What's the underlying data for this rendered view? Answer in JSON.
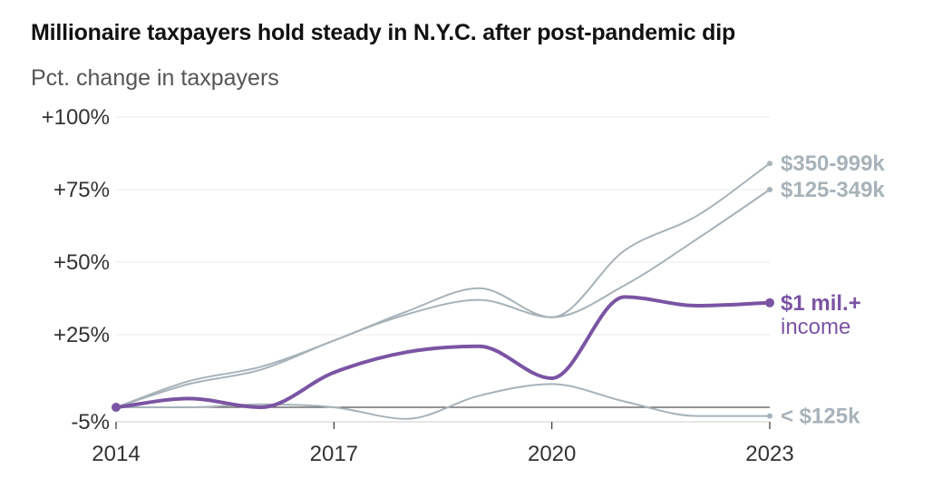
{
  "title": "Millionaire taxpayers hold steady in N.Y.C. after post-pandemic dip",
  "subtitle": "Pct. change in taxpayers",
  "chart_data": {
    "type": "line",
    "title": "Millionaire taxpayers hold steady in N.Y.C. after post-pandemic dip",
    "ylabel": "Pct. change in taxpayers",
    "xlabel": "",
    "x": [
      2014,
      2015,
      2016,
      2017,
      2018,
      2019,
      2020,
      2021,
      2022,
      2023
    ],
    "xticks": [
      2014,
      2017,
      2020,
      2023
    ],
    "xtick_labels": [
      "2014",
      "2017",
      "2020",
      "2023"
    ],
    "xlim": [
      2014,
      2023
    ],
    "ylim": [
      -5,
      100
    ],
    "yticks": [
      -5,
      25,
      50,
      75,
      100
    ],
    "ytick_labels": [
      "-5%",
      "+25%",
      "+50%",
      "+75%",
      "+100%"
    ],
    "grid": true,
    "baseline": 0,
    "series": [
      {
        "name": "$350-999k",
        "label_lines": [
          "$350-999k"
        ],
        "color": "#a7b2b9",
        "highlight": false,
        "values": [
          0,
          9,
          14,
          23,
          33,
          41,
          31,
          54,
          66,
          84
        ]
      },
      {
        "name": "$125-349k",
        "label_lines": [
          "$125-349k"
        ],
        "color": "#a7b2b9",
        "highlight": false,
        "values": [
          0,
          8,
          13,
          23,
          32,
          37,
          31,
          42,
          58,
          75
        ]
      },
      {
        "name": "$1 mil.+ income",
        "label_lines": [
          "$1 mil.+",
          "income"
        ],
        "color": "#7b54a3",
        "highlight": true,
        "values": [
          0,
          3,
          0,
          12,
          19,
          21,
          10,
          38,
          35,
          36
        ]
      },
      {
        "name": "< $125k",
        "label_lines": [
          "< $125k"
        ],
        "color": "#a7b2b9",
        "highlight": false,
        "values": [
          0,
          0,
          1,
          0,
          -4,
          4,
          8,
          2,
          -3,
          -3
        ]
      }
    ]
  }
}
